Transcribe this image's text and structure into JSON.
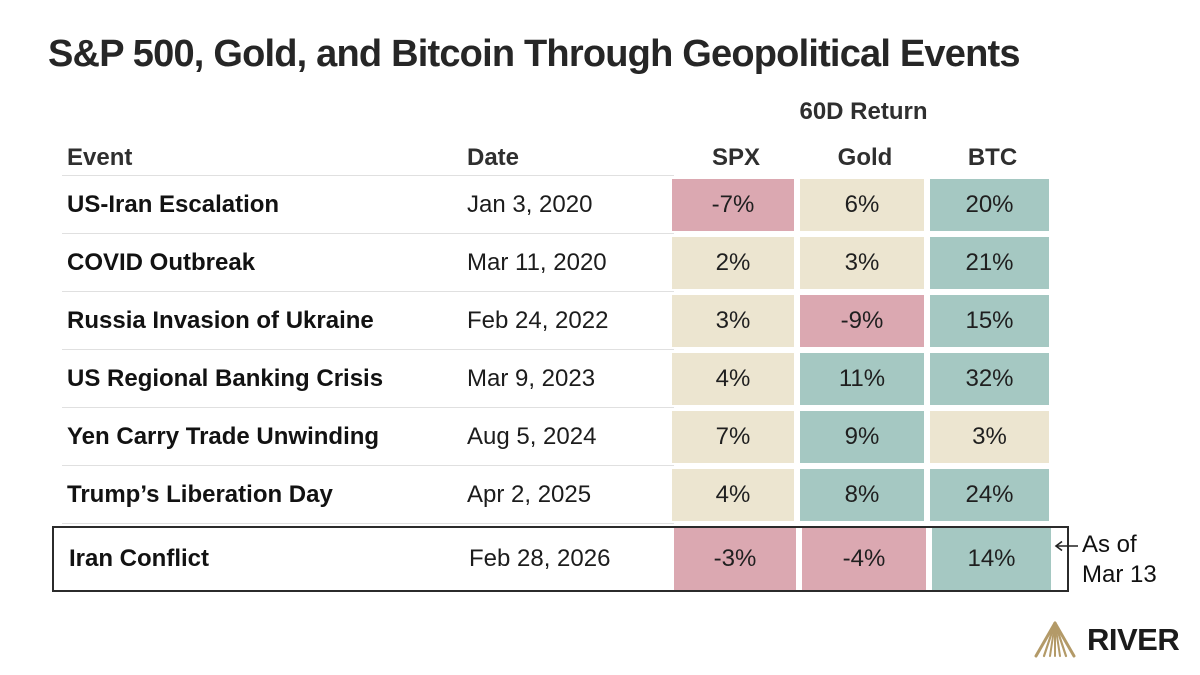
{
  "title": "S&P 500, Gold, and Bitcoin Through Geopolitical Events",
  "table": {
    "group_header": "60D Return",
    "columns": [
      "Event",
      "Date",
      "SPX",
      "Gold",
      "BTC"
    ],
    "rows": [
      {
        "event": "US-Iran Escalation",
        "date": "Jan 3, 2020",
        "spx": "-7%",
        "gold": "6%",
        "btc": "20%",
        "spx_tone": "negative",
        "gold_tone": "neutral",
        "btc_tone": "positive",
        "highlighted": false
      },
      {
        "event": "COVID Outbreak",
        "date": "Mar 11, 2020",
        "spx": "2%",
        "gold": "3%",
        "btc": "21%",
        "spx_tone": "neutral",
        "gold_tone": "neutral",
        "btc_tone": "positive",
        "highlighted": false
      },
      {
        "event": "Russia Invasion of Ukraine",
        "date": "Feb 24, 2022",
        "spx": "3%",
        "gold": "-9%",
        "btc": "15%",
        "spx_tone": "neutral",
        "gold_tone": "negative",
        "btc_tone": "positive",
        "highlighted": false
      },
      {
        "event": "US Regional Banking Crisis",
        "date": "Mar 9, 2023",
        "spx": "4%",
        "gold": "11%",
        "btc": "32%",
        "spx_tone": "neutral",
        "gold_tone": "positive",
        "btc_tone": "positive",
        "highlighted": false
      },
      {
        "event": "Yen Carry Trade Unwinding",
        "date": "Aug 5, 2024",
        "spx": "7%",
        "gold": "9%",
        "btc": "3%",
        "spx_tone": "neutral",
        "gold_tone": "positive",
        "btc_tone": "neutral",
        "highlighted": false
      },
      {
        "event": "Trump’s Liberation Day",
        "date": "Apr 2, 2025",
        "spx": "4%",
        "gold": "8%",
        "btc": "24%",
        "spx_tone": "neutral",
        "gold_tone": "positive",
        "btc_tone": "positive",
        "highlighted": false
      },
      {
        "event": "Iran Conflict",
        "date": "Feb 28, 2026",
        "spx": "-3%",
        "gold": "-4%",
        "btc": "14%",
        "spx_tone": "negative",
        "gold_tone": "negative",
        "btc_tone": "positive",
        "highlighted": true
      }
    ]
  },
  "annotation": {
    "line1": "As of",
    "line2": "Mar 13"
  },
  "brand": {
    "name": "RIVER",
    "logo_color": "#b39a68"
  },
  "colors": {
    "negative": "#dba8b1",
    "neutral": "#ece5d0",
    "positive": "#a5c8c2"
  },
  "chart_data": {
    "type": "table",
    "title": "S&P 500, Gold, and Bitcoin Through Geopolitical Events",
    "group_header": "60D Return",
    "columns": [
      "Event",
      "Date",
      "SPX",
      "Gold",
      "BTC"
    ],
    "rows": [
      [
        "US-Iran Escalation",
        "Jan 3, 2020",
        "-7%",
        "6%",
        "20%"
      ],
      [
        "COVID Outbreak",
        "Mar 11, 2020",
        "2%",
        "3%",
        "21%"
      ],
      [
        "Russia Invasion of Ukraine",
        "Feb 24, 2022",
        "3%",
        "-9%",
        "15%"
      ],
      [
        "US Regional Banking Crisis",
        "Mar 9, 2023",
        "4%",
        "11%",
        "32%"
      ],
      [
        "Yen Carry Trade Unwinding",
        "Aug 5, 2024",
        "7%",
        "9%",
        "3%"
      ],
      [
        "Trump’s Liberation Day",
        "Apr 2, 2025",
        "4%",
        "8%",
        "24%"
      ],
      [
        "Iran Conflict",
        "Feb 28, 2026",
        "-3%",
        "-4%",
        "14%"
      ]
    ],
    "cell_color_rule": "negative returns = pink, small positive = beige, strong positive = teal",
    "annotation": "As of Mar 13 (points to Iran Conflict row)",
    "source_brand": "RIVER"
  }
}
